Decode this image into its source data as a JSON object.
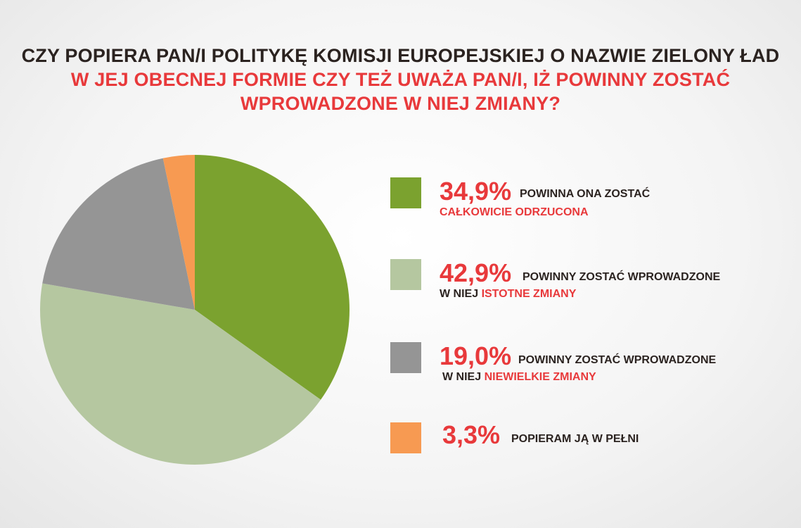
{
  "chart_data": {
    "type": "pie",
    "title_line1": "CZY POPIERA PAN/I POLITYKĘ KOMISJI EUROPEJSKIEJ O NAZWIE ZIELONY ŁAD",
    "title_line2": "W JEJ OBECNEJ FORMIE CZY TEŻ UWAŻA PAN/I, IŻ POWINNY ZOSTAĆ",
    "title_line3": "WPROWADZONE W NIEJ ZMIANY?",
    "slices": [
      {
        "value": 34.9,
        "pct_label": "34,9%",
        "text1": "POWINNA ONA ZOSTAĆ",
        "text2_dark": "",
        "text2_red": "CAŁKOWICIE ODRZUCONA",
        "color": "#7ba22f"
      },
      {
        "value": 42.9,
        "pct_label": "42,9%",
        "text1": "POWINNY ZOSTAĆ WPROWADZONE",
        "text2_dark": "W NIEJ ",
        "text2_red": "ISTOTNE ZMIANY",
        "color": "#b5c7a0"
      },
      {
        "value": 19.0,
        "pct_label": "19,0%",
        "text1": "POWINNY ZOSTAĆ WPROWADZONE",
        "text2_dark": "W NIEJ ",
        "text2_red": "NIEWIELKIE ZMIANY",
        "color": "#959595"
      },
      {
        "value": 3.3,
        "pct_label": "3,3%",
        "text1": "POPIERAM JĄ W PEŁNI",
        "text2_dark": "",
        "text2_red": "",
        "color": "#f79a52"
      }
    ]
  }
}
